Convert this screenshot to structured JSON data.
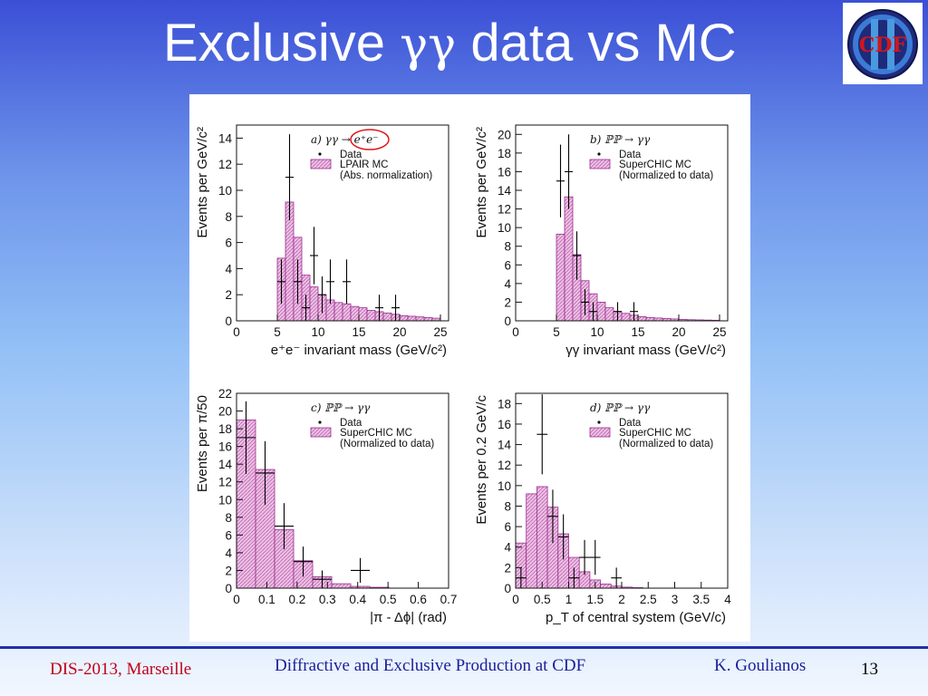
{
  "slide": {
    "title_prefix": "Exclusive ",
    "title_greek": "γγ",
    "title_suffix": " data vs MC",
    "logo_text": "CDF",
    "logo_roman": "II",
    "footer_left": "DIS-2013, Marseille",
    "footer_center": "Diffractive and Exclusive Production at CDF",
    "footer_right": "K. Goulianos",
    "page_number": "13"
  },
  "colors": {
    "mc_fill": "#e8b3df",
    "mc_stroke": "#9c2d8f",
    "data": "#000000",
    "title": "#ffffff",
    "footer_red": "#c0001b",
    "footer_blue": "#1a1f9a",
    "highlight_circle": "#e0151b"
  },
  "chart_data": [
    {
      "type": "bar",
      "panel_label": "a) γγ → e⁺e⁻",
      "xlabel": "e⁺e⁻ invariant mass (GeV/c²)",
      "ylabel": "Events per GeV/c²",
      "xlim": [
        0,
        26
      ],
      "ylim": [
        0,
        15
      ],
      "xticks": [
        0,
        5,
        10,
        15,
        20,
        25
      ],
      "yticks": [
        0,
        2,
        4,
        6,
        8,
        10,
        12,
        14
      ],
      "legend": [
        "Data",
        "LPAIR MC",
        "(Abs. normalization)"
      ],
      "mc": {
        "name": "LPAIR MC",
        "bin_edges": [
          5,
          6,
          7,
          8,
          9,
          10,
          11,
          12,
          13,
          14,
          15,
          16,
          17,
          18,
          19,
          20,
          21,
          22,
          23,
          24,
          25
        ],
        "values": [
          4.8,
          9.1,
          6.4,
          3.5,
          2.6,
          2.0,
          1.6,
          1.4,
          1.3,
          1.1,
          1.0,
          0.8,
          0.7,
          0.6,
          0.5,
          0.4,
          0.35,
          0.3,
          0.25,
          0.2
        ]
      },
      "data": {
        "name": "Data",
        "x": [
          5.5,
          6.5,
          7.5,
          8.5,
          9.5,
          10.5,
          11.5,
          13.5,
          17.5,
          19.5
        ],
        "y": [
          3,
          11,
          3,
          1,
          5,
          2,
          3,
          3,
          1,
          1
        ],
        "yerr": [
          1.7,
          3.3,
          1.7,
          1,
          2.2,
          1.4,
          1.7,
          1.7,
          1,
          1
        ]
      }
    },
    {
      "type": "bar",
      "panel_label": "b) ℙℙ → γγ",
      "xlabel": "γγ invariant mass (GeV/c²)",
      "ylabel": "Events per GeV/c²",
      "xlim": [
        0,
        26
      ],
      "ylim": [
        0,
        21
      ],
      "xticks": [
        0,
        5,
        10,
        15,
        20,
        25
      ],
      "yticks": [
        0,
        2,
        4,
        6,
        8,
        10,
        12,
        14,
        16,
        18,
        20
      ],
      "legend": [
        "Data",
        "SuperCHIC MC",
        "(Normalized to data)"
      ],
      "mc": {
        "name": "SuperCHIC MC",
        "bin_edges": [
          5,
          6,
          7,
          8,
          9,
          10,
          11,
          12,
          13,
          14,
          15,
          16,
          17,
          18,
          19,
          20,
          21,
          22,
          23,
          24,
          25
        ],
        "values": [
          9.3,
          13.3,
          7.1,
          4.3,
          2.9,
          2.0,
          1.4,
          1.0,
          0.8,
          0.6,
          0.45,
          0.35,
          0.3,
          0.25,
          0.2,
          0.15,
          0.12,
          0.1,
          0.08,
          0.06
        ]
      },
      "data": {
        "name": "Data",
        "x": [
          5.5,
          6.5,
          7.5,
          8.5,
          9.5,
          12.5,
          14.5
        ],
        "y": [
          15,
          16,
          7,
          2,
          1,
          1,
          1
        ],
        "yerr": [
          3.9,
          4,
          2.6,
          1.4,
          1,
          1,
          1
        ]
      }
    },
    {
      "type": "bar",
      "panel_label": "c) ℙℙ → γγ",
      "xlabel": "|π - Δϕ| (rad)",
      "ylabel": "Events per π/50",
      "xlim": [
        0,
        0.7
      ],
      "ylim": [
        0,
        22
      ],
      "xticks": [
        0,
        0.1,
        0.2,
        0.3,
        0.4,
        0.5,
        0.6,
        0.7
      ],
      "yticks": [
        0,
        2,
        4,
        6,
        8,
        10,
        12,
        14,
        16,
        18,
        20,
        22
      ],
      "legend": [
        "Data",
        "SuperCHIC MC",
        "(Normalized to data)"
      ],
      "mc": {
        "name": "SuperCHIC MC",
        "bin_edges": [
          0,
          0.0628,
          0.1257,
          0.1885,
          0.2513,
          0.3142,
          0.377,
          0.4398,
          0.5027
        ],
        "values": [
          19,
          13.4,
          6.6,
          3.1,
          1.3,
          0.5,
          0.2,
          0.1
        ]
      },
      "data": {
        "name": "Data",
        "x": [
          0.0314,
          0.0942,
          0.157,
          0.2199,
          0.2827,
          0.4084
        ],
        "y": [
          17,
          13,
          7,
          3,
          1,
          2
        ],
        "yerr": [
          4.1,
          3.6,
          2.6,
          1.7,
          1,
          1.4
        ],
        "xerr": [
          0.0314,
          0.0314,
          0.0314,
          0.0314,
          0.0314,
          0.0314
        ]
      }
    },
    {
      "type": "bar",
      "panel_label": "d) ℙℙ → γγ",
      "xlabel": "p_T of central system (GeV/c)",
      "ylabel": "Events per 0.2 GeV/c",
      "xlim": [
        0,
        4
      ],
      "ylim": [
        0,
        19
      ],
      "xticks": [
        0,
        0.5,
        1,
        1.5,
        2,
        2.5,
        3,
        3.5,
        4
      ],
      "yticks": [
        0,
        2,
        4,
        6,
        8,
        10,
        12,
        14,
        16,
        18
      ],
      "legend": [
        "Data",
        "SuperCHIC MC",
        "(Normalized to data)"
      ],
      "mc": {
        "name": "SuperCHIC MC",
        "bin_edges": [
          0,
          0.2,
          0.4,
          0.6,
          0.8,
          1.0,
          1.2,
          1.4,
          1.6,
          1.8,
          2.0,
          2.2,
          2.4
        ],
        "values": [
          4.4,
          9.2,
          9.9,
          7.9,
          5.3,
          3.0,
          1.6,
          0.8,
          0.4,
          0.2,
          0.1,
          0.05
        ]
      },
      "data": {
        "name": "Data",
        "x": [
          0.1,
          0.5,
          0.7,
          0.9,
          1.1,
          1.3,
          1.5,
          1.9
        ],
        "y": [
          1,
          15,
          7,
          5,
          1,
          3,
          3,
          1
        ],
        "yerr": [
          1,
          3.9,
          2.6,
          2.2,
          1,
          1.7,
          1.7,
          1
        ],
        "xerr": [
          0.1,
          0.1,
          0.1,
          0.1,
          0.1,
          0.1,
          0.1,
          0.1
        ]
      }
    }
  ]
}
